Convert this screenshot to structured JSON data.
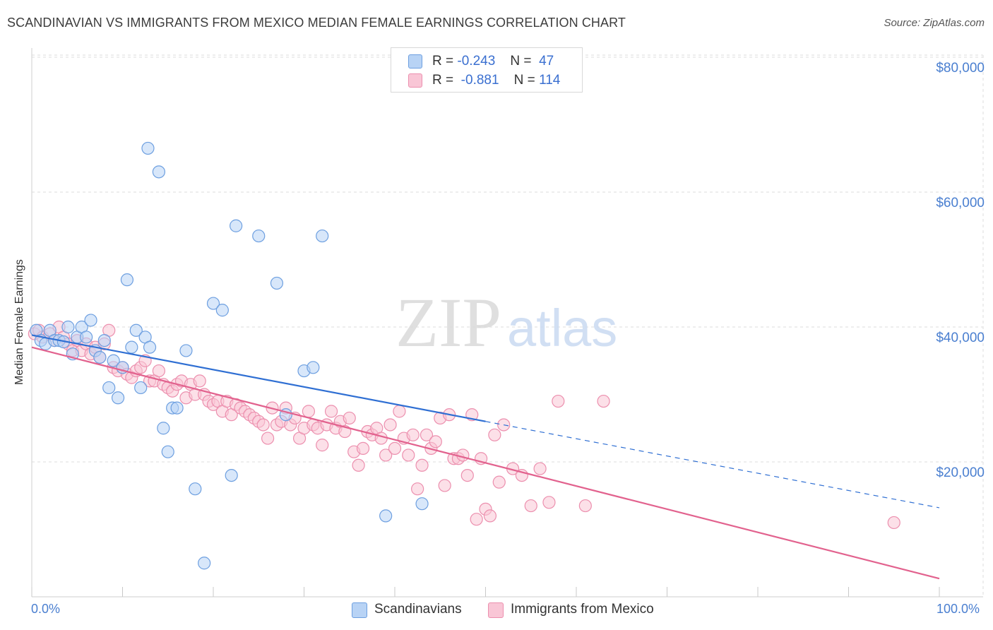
{
  "header": {
    "title": "SCANDINAVIAN VS IMMIGRANTS FROM MEXICO MEDIAN FEMALE EARNINGS CORRELATION CHART",
    "source": "Source: ZipAtlas.com"
  },
  "watermark": {
    "zip": "ZIP",
    "atlas": "atlas"
  },
  "legend": {
    "rows": [
      {
        "r_label": "R =",
        "r_value": "-0.243",
        "n_label": "N =",
        "n_value": "47"
      },
      {
        "r_label": "R =",
        "r_value": "-0.881",
        "n_label": "N =",
        "n_value": "114"
      }
    ]
  },
  "colors": {
    "series_a_fill": "#b8d3f5",
    "series_a_stroke": "#6d9fe0",
    "series_a_line": "#2f6fd3",
    "series_b_fill": "#f9c6d6",
    "series_b_stroke": "#ec8fae",
    "series_b_line": "#e2628e",
    "tick_text": "#4a7fd0",
    "grid": "#dedede"
  },
  "chart_data": {
    "type": "scatter",
    "title": "SCANDINAVIAN VS IMMIGRANTS FROM MEXICO MEDIAN FEMALE EARNINGS CORRELATION CHART",
    "xlabel": "",
    "ylabel": "Median Female Earnings",
    "xlim": [
      0,
      100
    ],
    "ylim": [
      0,
      82000
    ],
    "x_tick_labels": [
      "0.0%",
      "100.0%"
    ],
    "y_ticks": [
      20000,
      40000,
      60000,
      80000
    ],
    "y_tick_labels": [
      "$20,000",
      "$40,000",
      "$60,000",
      "$80,000"
    ],
    "grid": true,
    "legend_position": "top-center",
    "series": [
      {
        "name": "Scandinavians",
        "r": -0.243,
        "n": 47,
        "trend": {
          "x0": 0,
          "y0": 38800,
          "x1": 50,
          "y1": 26000,
          "dashed_to_x": 100,
          "dashed_to_y": 13200
        },
        "points": [
          [
            0.5,
            39500
          ],
          [
            1,
            38000
          ],
          [
            1.5,
            37500
          ],
          [
            2,
            39500
          ],
          [
            2.5,
            38000
          ],
          [
            3,
            38000
          ],
          [
            3.5,
            37800
          ],
          [
            4,
            40000
          ],
          [
            4.5,
            36000
          ],
          [
            5,
            38500
          ],
          [
            5.5,
            40000
          ],
          [
            6,
            38500
          ],
          [
            6.5,
            41000
          ],
          [
            7,
            36500
          ],
          [
            7.5,
            35500
          ],
          [
            8,
            38000
          ],
          [
            8.5,
            31000
          ],
          [
            9,
            35000
          ],
          [
            9.5,
            29500
          ],
          [
            10,
            34000
          ],
          [
            10.5,
            47000
          ],
          [
            11,
            37000
          ],
          [
            11.5,
            39500
          ],
          [
            12,
            31000
          ],
          [
            12.5,
            38500
          ],
          [
            12.8,
            66500
          ],
          [
            13,
            37000
          ],
          [
            14,
            63000
          ],
          [
            14.5,
            25000
          ],
          [
            15,
            21500
          ],
          [
            15.5,
            28000
          ],
          [
            16,
            28000
          ],
          [
            17,
            36500
          ],
          [
            18,
            16000
          ],
          [
            19,
            5000
          ],
          [
            20,
            43500
          ],
          [
            21,
            42500
          ],
          [
            22,
            18000
          ],
          [
            22.5,
            55000
          ],
          [
            25,
            53500
          ],
          [
            27,
            46500
          ],
          [
            28,
            27000
          ],
          [
            30,
            33500
          ],
          [
            31,
            34000
          ],
          [
            32,
            53500
          ],
          [
            39,
            12000
          ],
          [
            43,
            13800
          ]
        ]
      },
      {
        "name": "Immigrants from Mexico",
        "r": -0.881,
        "n": 114,
        "trend": {
          "x0": 0,
          "y0": 37000,
          "x1": 100,
          "y1": 2700
        },
        "points": [
          [
            0.3,
            39000
          ],
          [
            0.8,
            39500
          ],
          [
            1.2,
            38500
          ],
          [
            2,
            39000
          ],
          [
            2.5,
            38000
          ],
          [
            3,
            40000
          ],
          [
            3.5,
            38500
          ],
          [
            4,
            37500
          ],
          [
            4.5,
            36500
          ],
          [
            5,
            38000
          ],
          [
            5.5,
            36500
          ],
          [
            6,
            37500
          ],
          [
            6.5,
            36000
          ],
          [
            7,
            37000
          ],
          [
            7.5,
            35500
          ],
          [
            8,
            37500
          ],
          [
            8.5,
            39500
          ],
          [
            9,
            34000
          ],
          [
            9.5,
            33500
          ],
          [
            10,
            34000
          ],
          [
            10.5,
            33000
          ],
          [
            11,
            32500
          ],
          [
            11.5,
            33500
          ],
          [
            12,
            34000
          ],
          [
            12.5,
            35000
          ],
          [
            13,
            32000
          ],
          [
            13.5,
            32000
          ],
          [
            14,
            33500
          ],
          [
            14.5,
            31500
          ],
          [
            15,
            31000
          ],
          [
            15.5,
            30500
          ],
          [
            16,
            31500
          ],
          [
            16.5,
            32000
          ],
          [
            17,
            29500
          ],
          [
            17.5,
            31500
          ],
          [
            18,
            30000
          ],
          [
            18.5,
            32000
          ],
          [
            19,
            30000
          ],
          [
            19.5,
            29000
          ],
          [
            20,
            28500
          ],
          [
            20.5,
            29000
          ],
          [
            21,
            27500
          ],
          [
            21.5,
            29000
          ],
          [
            22,
            27000
          ],
          [
            22.5,
            28500
          ],
          [
            23,
            28000
          ],
          [
            23.5,
            27500
          ],
          [
            24,
            27000
          ],
          [
            24.5,
            26500
          ],
          [
            25,
            26000
          ],
          [
            25.5,
            25500
          ],
          [
            26,
            23500
          ],
          [
            26.5,
            28000
          ],
          [
            27,
            25500
          ],
          [
            27.5,
            26000
          ],
          [
            28,
            28000
          ],
          [
            28.5,
            25500
          ],
          [
            29,
            26500
          ],
          [
            29.5,
            23500
          ],
          [
            30,
            25000
          ],
          [
            30.5,
            27500
          ],
          [
            31,
            25500
          ],
          [
            31.5,
            25000
          ],
          [
            32,
            22500
          ],
          [
            32.5,
            25500
          ],
          [
            33,
            27500
          ],
          [
            33.5,
            25000
          ],
          [
            34,
            26000
          ],
          [
            34.5,
            24500
          ],
          [
            35,
            26500
          ],
          [
            35.5,
            21500
          ],
          [
            36,
            19500
          ],
          [
            36.5,
            22000
          ],
          [
            37,
            24500
          ],
          [
            37.5,
            24000
          ],
          [
            38,
            25000
          ],
          [
            38.5,
            23500
          ],
          [
            39,
            21000
          ],
          [
            39.5,
            25500
          ],
          [
            40,
            22000
          ],
          [
            40.5,
            27500
          ],
          [
            41,
            23500
          ],
          [
            41.5,
            21000
          ],
          [
            42,
            24000
          ],
          [
            42.5,
            16000
          ],
          [
            43,
            19500
          ],
          [
            43.5,
            24000
          ],
          [
            44,
            22000
          ],
          [
            44.5,
            23000
          ],
          [
            45,
            26500
          ],
          [
            45.5,
            16500
          ],
          [
            46,
            27000
          ],
          [
            46.5,
            20500
          ],
          [
            47,
            20500
          ],
          [
            47.5,
            21000
          ],
          [
            48,
            18000
          ],
          [
            48.5,
            27000
          ],
          [
            49,
            11500
          ],
          [
            49.5,
            20500
          ],
          [
            50,
            13000
          ],
          [
            50.5,
            12000
          ],
          [
            51,
            24000
          ],
          [
            51.5,
            17000
          ],
          [
            52,
            25500
          ],
          [
            53,
            19000
          ],
          [
            54,
            18000
          ],
          [
            55,
            13500
          ],
          [
            56,
            19000
          ],
          [
            57,
            14000
          ],
          [
            58,
            29000
          ],
          [
            61,
            13500
          ],
          [
            63,
            29000
          ],
          [
            95,
            11000
          ]
        ]
      }
    ]
  },
  "bottom_legend": {
    "a_label": "Scandinavians",
    "b_label": "Immigrants from Mexico"
  }
}
